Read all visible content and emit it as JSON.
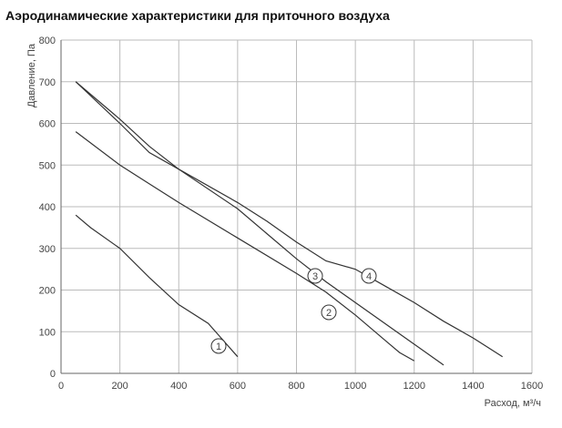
{
  "chart_data": {
    "type": "line",
    "title": "Аэродинамические характеристики для приточного воздуха",
    "y_label": "Давление, Па",
    "x_label": "Расход, м³/ч",
    "xlim": [
      0,
      1600
    ],
    "xticks": [
      0,
      200,
      400,
      600,
      800,
      1000,
      1200,
      1400,
      1600
    ],
    "ylim": [
      0,
      800
    ],
    "yticks": [
      0,
      100,
      200,
      300,
      400,
      500,
      600,
      700,
      800
    ],
    "grid": true,
    "series": [
      {
        "name": "1",
        "color": "#333333",
        "x": [
          50,
          100,
          200,
          300,
          400,
          500,
          550,
          600
        ],
        "values": [
          380,
          350,
          300,
          230,
          165,
          120,
          80,
          40
        ]
      },
      {
        "name": "2",
        "color": "#333333",
        "x": [
          50,
          200,
          300,
          400,
          600,
          800,
          900,
          1000,
          1100,
          1150,
          1200
        ],
        "values": [
          580,
          500,
          455,
          410,
          325,
          240,
          195,
          140,
          80,
          50,
          30
        ]
      },
      {
        "name": "3",
        "color": "#333333",
        "x": [
          50,
          200,
          300,
          400,
          600,
          700,
          800,
          900,
          1000,
          1100,
          1200,
          1300
        ],
        "values": [
          700,
          610,
          545,
          490,
          395,
          335,
          275,
          220,
          170,
          120,
          70,
          20
        ]
      },
      {
        "name": "4",
        "color": "#333333",
        "x": [
          50,
          200,
          300,
          400,
          600,
          700,
          800,
          900,
          1000,
          1100,
          1200,
          1300,
          1400,
          1500
        ],
        "values": [
          700,
          600,
          530,
          490,
          410,
          365,
          315,
          270,
          250,
          210,
          170,
          125,
          85,
          40
        ]
      }
    ]
  }
}
